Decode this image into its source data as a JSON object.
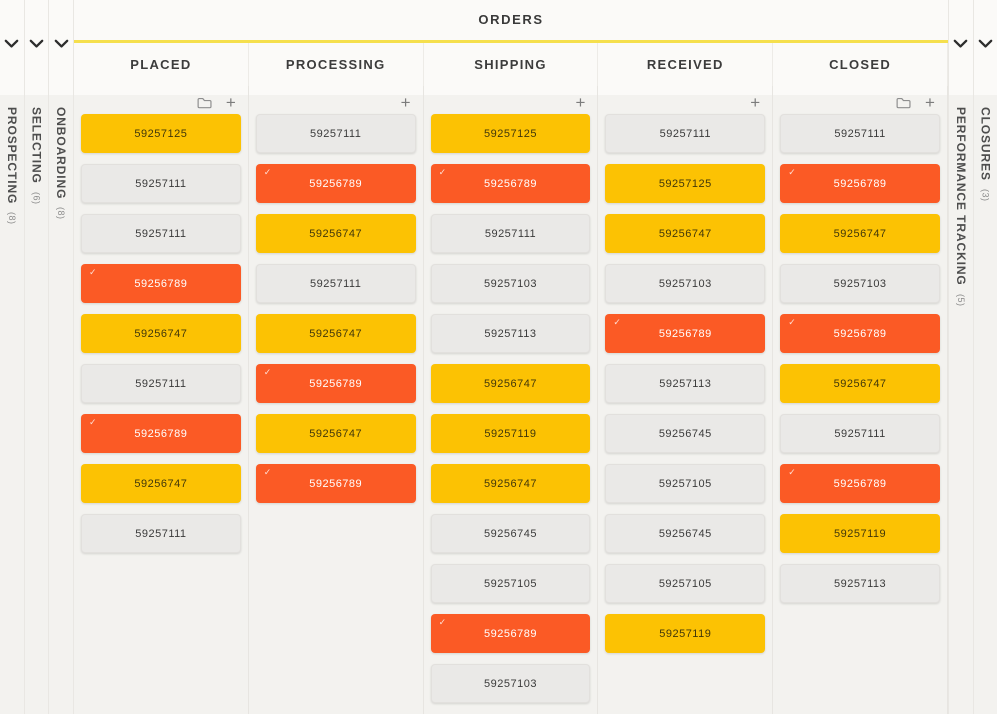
{
  "board": {
    "title": "ORDERS",
    "accent_line_color": "#F5DF4D",
    "card_colors": {
      "yellow": "#FCC203",
      "orange": "#FB5A25",
      "gray": "#EAE9E7"
    },
    "icons": {
      "collapsed_toggle": "chevron-down-icon",
      "group": "folder-icon",
      "add": "plus-icon",
      "card_selected": "check-icon"
    },
    "left_collapsed": [
      {
        "label": "PROSPECTING",
        "count_label": "(8)"
      },
      {
        "label": "SELECTING",
        "count_label": "(6)"
      },
      {
        "label": "ONBOARDING",
        "count_label": "(8)"
      }
    ],
    "right_collapsed": [
      {
        "label": "PERFORMANCE TRACKING",
        "count_label": "(5)"
      },
      {
        "label": "CLOSURES",
        "count_label": "(3)"
      }
    ],
    "columns": [
      {
        "label": "PLACED",
        "has_folder": true,
        "has_add": true,
        "cards": [
          {
            "id": "59257125",
            "color": "yellow",
            "checked": false
          },
          {
            "id": "59257111",
            "color": "gray",
            "checked": false
          },
          {
            "id": "59257111",
            "color": "gray",
            "checked": false
          },
          {
            "id": "59256789",
            "color": "orange",
            "checked": true
          },
          {
            "id": "59256747",
            "color": "yellow",
            "checked": false
          },
          {
            "id": "59257111",
            "color": "gray",
            "checked": false
          },
          {
            "id": "59256789",
            "color": "orange",
            "checked": true
          },
          {
            "id": "59256747",
            "color": "yellow",
            "checked": false
          },
          {
            "id": "59257111",
            "color": "gray",
            "checked": false
          }
        ]
      },
      {
        "label": "PROCESSING",
        "has_folder": false,
        "has_add": true,
        "cards": [
          {
            "id": "59257111",
            "color": "gray",
            "checked": false
          },
          {
            "id": "59256789",
            "color": "orange",
            "checked": true
          },
          {
            "id": "59256747",
            "color": "yellow",
            "checked": false
          },
          {
            "id": "59257111",
            "color": "gray",
            "checked": false
          },
          {
            "id": "59256747",
            "color": "yellow",
            "checked": false
          },
          {
            "id": "59256789",
            "color": "orange",
            "checked": true
          },
          {
            "id": "59256747",
            "color": "yellow",
            "checked": false
          },
          {
            "id": "59256789",
            "color": "orange",
            "checked": true
          }
        ]
      },
      {
        "label": "SHIPPING",
        "has_folder": false,
        "has_add": true,
        "cards": [
          {
            "id": "59257125",
            "color": "yellow",
            "checked": false
          },
          {
            "id": "59256789",
            "color": "orange",
            "checked": true
          },
          {
            "id": "59257111",
            "color": "gray",
            "checked": false
          },
          {
            "id": "59257103",
            "color": "gray",
            "checked": false
          },
          {
            "id": "59257113",
            "color": "gray",
            "checked": false
          },
          {
            "id": "59256747",
            "color": "yellow",
            "checked": false
          },
          {
            "id": "59257119",
            "color": "yellow",
            "checked": false
          },
          {
            "id": "59256747",
            "color": "yellow",
            "checked": false
          },
          {
            "id": "59256745",
            "color": "gray",
            "checked": false
          },
          {
            "id": "59257105",
            "color": "gray",
            "checked": false
          },
          {
            "id": "59256789",
            "color": "orange",
            "checked": true
          },
          {
            "id": "59257103",
            "color": "gray",
            "checked": false
          }
        ]
      },
      {
        "label": "RECEIVED",
        "has_folder": false,
        "has_add": true,
        "cards": [
          {
            "id": "59257111",
            "color": "gray",
            "checked": false
          },
          {
            "id": "59257125",
            "color": "yellow",
            "checked": false
          },
          {
            "id": "59256747",
            "color": "yellow",
            "checked": false
          },
          {
            "id": "59257103",
            "color": "gray",
            "checked": false
          },
          {
            "id": "59256789",
            "color": "orange",
            "checked": true
          },
          {
            "id": "59257113",
            "color": "gray",
            "checked": false
          },
          {
            "id": "59256745",
            "color": "gray",
            "checked": false
          },
          {
            "id": "59257105",
            "color": "gray",
            "checked": false
          },
          {
            "id": "59256745",
            "color": "gray",
            "checked": false
          },
          {
            "id": "59257105",
            "color": "gray",
            "checked": false
          },
          {
            "id": "59257119",
            "color": "yellow",
            "checked": false
          }
        ]
      },
      {
        "label": "CLOSED",
        "has_folder": true,
        "has_add": true,
        "cards": [
          {
            "id": "59257111",
            "color": "gray",
            "checked": false
          },
          {
            "id": "59256789",
            "color": "orange",
            "checked": true
          },
          {
            "id": "59256747",
            "color": "yellow",
            "checked": false
          },
          {
            "id": "59257103",
            "color": "gray",
            "checked": false
          },
          {
            "id": "59256789",
            "color": "orange",
            "checked": true
          },
          {
            "id": "59256747",
            "color": "yellow",
            "checked": false
          },
          {
            "id": "59257111",
            "color": "gray",
            "checked": false
          },
          {
            "id": "59256789",
            "color": "orange",
            "checked": true
          },
          {
            "id": "59257119",
            "color": "yellow",
            "checked": false
          },
          {
            "id": "59257113",
            "color": "gray",
            "checked": false
          }
        ]
      }
    ]
  }
}
